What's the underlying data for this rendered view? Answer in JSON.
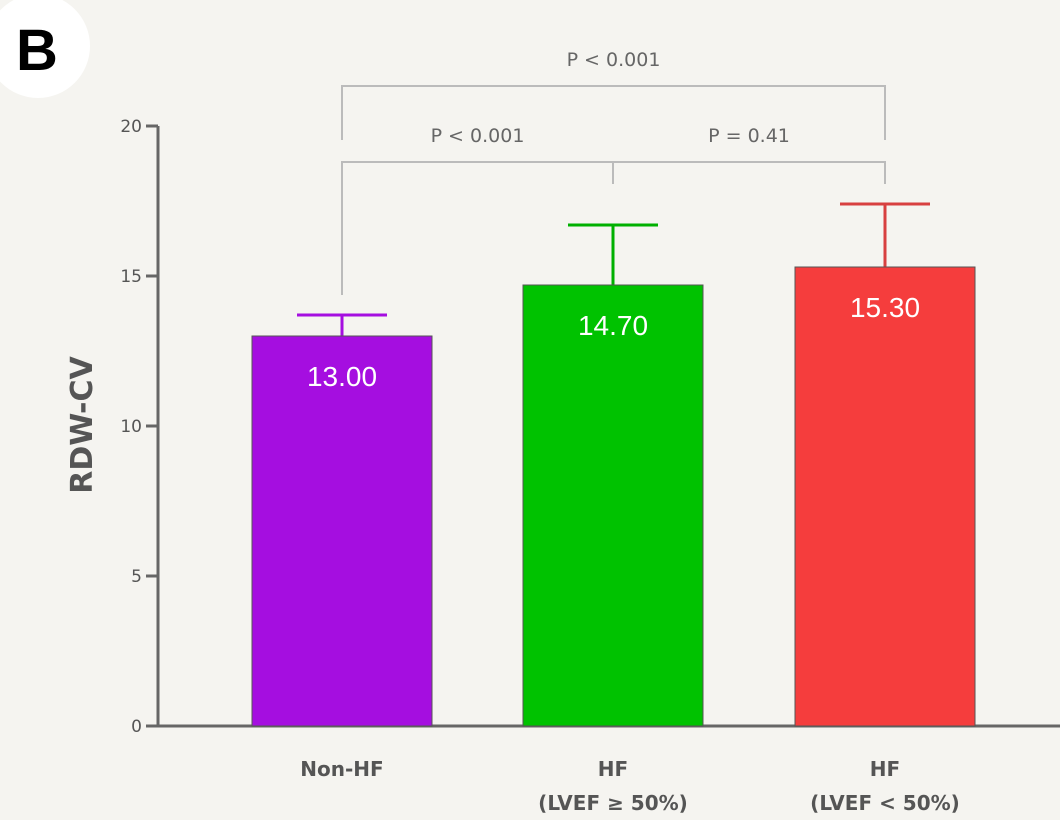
{
  "panel_label": "B",
  "chart_data": {
    "type": "bar",
    "title": "",
    "ylabel": "RDW-CV",
    "xlabel": "",
    "ylim": [
      0,
      20
    ],
    "yticks": [
      0,
      5,
      10,
      15,
      20
    ],
    "categories": [
      {
        "line1": "Non-HF",
        "line2": ""
      },
      {
        "line1": "HF",
        "line2": "(LVEF ≥ 50%)"
      },
      {
        "line1": "HF",
        "line2": "(LVEF < 50%)"
      }
    ],
    "values": [
      13.0,
      14.7,
      15.3
    ],
    "value_labels": [
      "13.00",
      "14.70",
      "15.30"
    ],
    "error_upper": [
      13.7,
      16.7,
      17.4
    ],
    "colors": [
      "#a50ee0",
      "#00c200",
      "#f53d3d"
    ],
    "error_colors": [
      "#a50ee0",
      "#00b000",
      "#d84040"
    ],
    "comparisons": [
      {
        "from": 0,
        "to": 1,
        "label": "P < 0.001"
      },
      {
        "from": 1,
        "to": 2,
        "label": "P = 0.41"
      },
      {
        "from": 0,
        "to": 2,
        "label": "P < 0.001"
      }
    ]
  }
}
